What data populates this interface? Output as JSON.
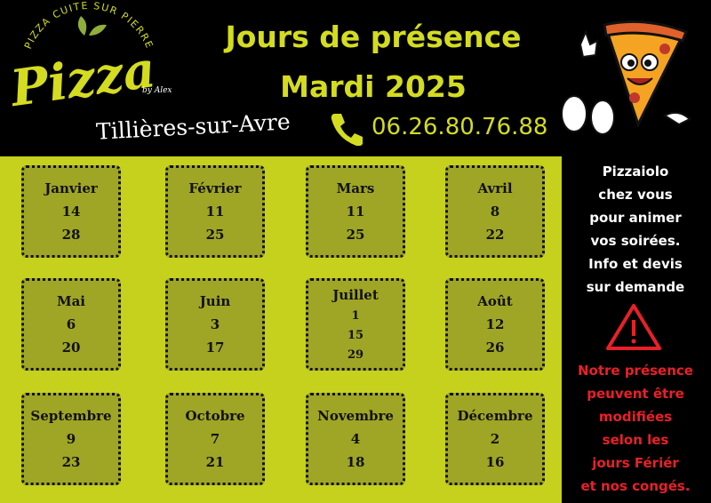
{
  "logo": {
    "arc_text": "PIZZA CUITE SUR PIERRE",
    "name": "Pizza",
    "by": "by Alex"
  },
  "title": [
    "Jours de présence",
    "Mardi 2025"
  ],
  "town": "Tillières-sur-Avre",
  "phone": "06.26.80.76.88",
  "months": [
    {
      "name": "Janvier",
      "days": [
        "14",
        "28"
      ]
    },
    {
      "name": "Février",
      "days": [
        "11",
        "25"
      ]
    },
    {
      "name": "Mars",
      "days": [
        "11",
        "25"
      ]
    },
    {
      "name": "Avril",
      "days": [
        "8",
        "22"
      ]
    },
    {
      "name": "Mai",
      "days": [
        "6",
        "20"
      ]
    },
    {
      "name": "Juin",
      "days": [
        "3",
        "17"
      ]
    },
    {
      "name": "Juillet",
      "days": [
        "1",
        "15",
        "29"
      ]
    },
    {
      "name": "Août",
      "days": [
        "12",
        "26"
      ]
    },
    {
      "name": "Septembre",
      "days": [
        "9",
        "23"
      ]
    },
    {
      "name": "Octobre",
      "days": [
        "7",
        "21"
      ]
    },
    {
      "name": "Novembre",
      "days": [
        "4",
        "18"
      ]
    },
    {
      "name": "Décembre",
      "days": [
        "2",
        "16"
      ]
    }
  ],
  "promo": [
    "Pizzaiolo",
    "chez vous",
    "pour animer",
    "vos soirées.",
    "Info et devis",
    "sur demande"
  ],
  "warning": [
    "Notre présence",
    "peuvent être",
    "modifiées",
    "selon les",
    "jours Fériér",
    "et nos congés."
  ]
}
